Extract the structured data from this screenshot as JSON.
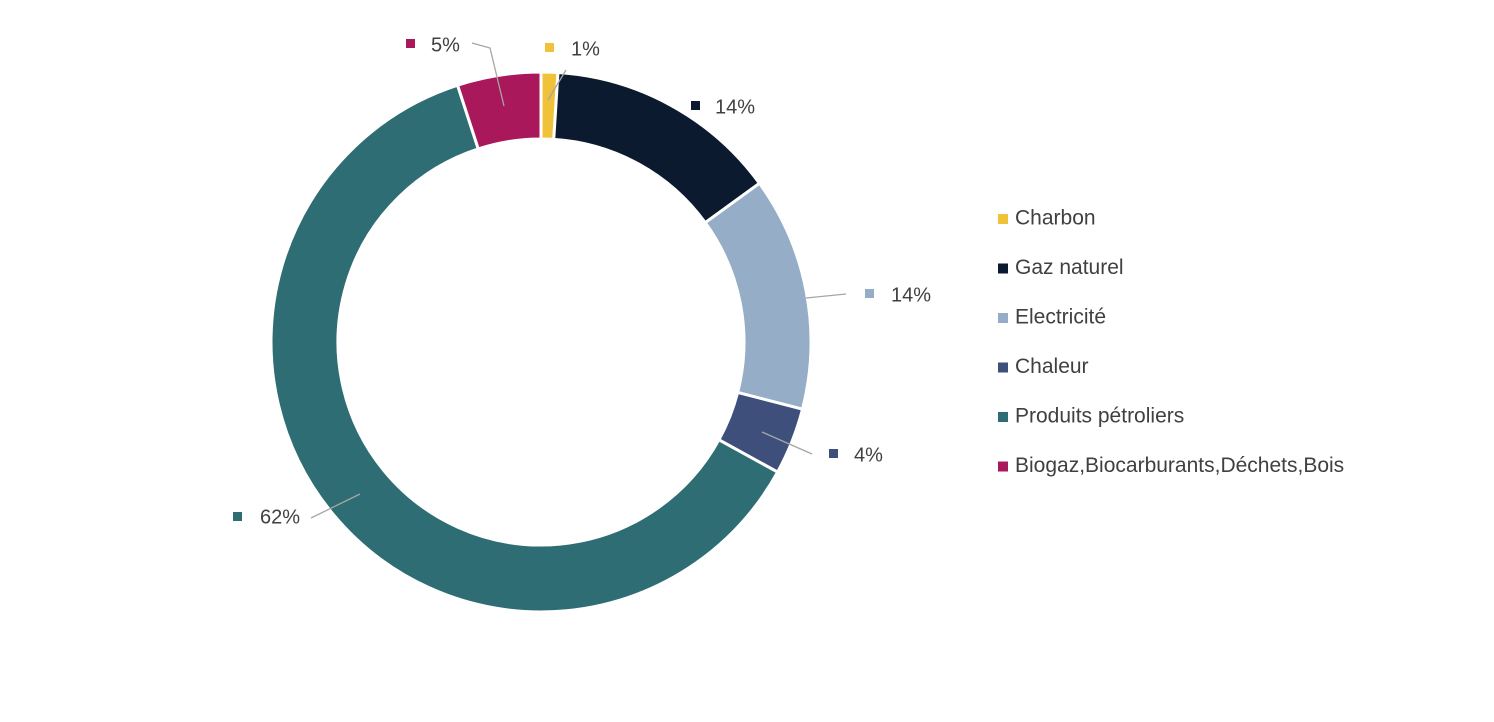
{
  "chart_data": {
    "type": "pie",
    "variant": "donut",
    "title": "",
    "legend_position": "right",
    "categories": [
      "Charbon",
      "Gaz naturel",
      "Electricité",
      "Chaleur",
      "Produits pétroliers",
      "Biogaz,Biocarburants,Déchets,Bois"
    ],
    "values": [
      1,
      14,
      14,
      4,
      62,
      5
    ],
    "data_labels": [
      "1%",
      "14%",
      "14%",
      "4%",
      "62%",
      "5%"
    ],
    "colors": [
      "#f0c23a",
      "#0b1a2f",
      "#95adc6",
      "#3d4f7a",
      "#2e6d73",
      "#a8185a"
    ]
  }
}
